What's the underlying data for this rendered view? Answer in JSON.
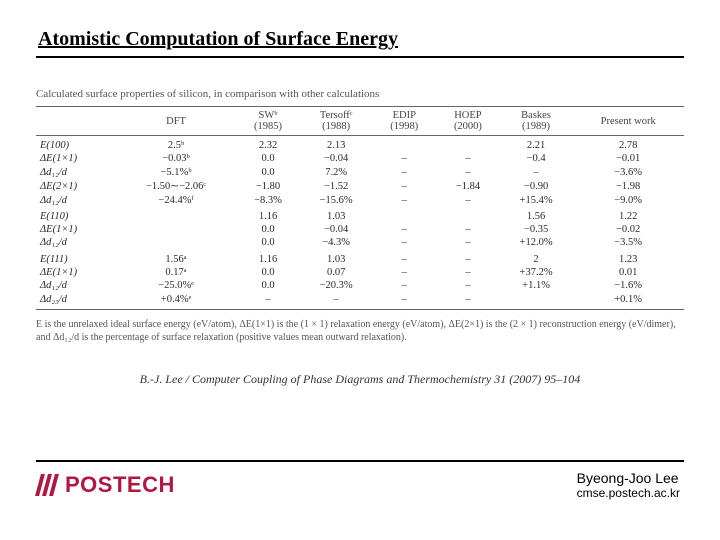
{
  "title": "Atomistic Computation of Surface Energy",
  "table": {
    "caption": "Calculated surface properties of silicon, in comparison with other calculations",
    "columns": [
      "",
      "DFT",
      "SWᵇ (1985)",
      "Tersoffᶜ (1988)",
      "EDIP (1998)",
      "HOEP (2000)",
      "Baskes (1989)",
      "Present work"
    ],
    "rows": [
      [
        "E(100)",
        "2.5ᵇ",
        "2.32",
        "2.13",
        "",
        "",
        "2.21",
        "2.78"
      ],
      [
        "ΔE(1×1)",
        "−0.03ᵇ",
        "0.0",
        "−0.04",
        "–",
        "–",
        "−0.4",
        "−0.01"
      ],
      [
        "Δd₁₂/d",
        "−5.1%ᵇ",
        "0.0",
        "7.2%",
        "–",
        "–",
        "–",
        "−3.6%"
      ],
      [
        "ΔE(2×1)",
        "−1.50∼−2.06ᶜ",
        "−1.80",
        "−1.52",
        "–",
        "−1.84",
        "−0.90",
        "−1.98"
      ],
      [
        "Δd₁₂/d",
        "−24.4%ᶠ",
        "−8.3%",
        "−15.6%",
        "–",
        "–",
        "+15.4%",
        "−9.0%"
      ],
      [
        "E(110)",
        "",
        "1.16",
        "1.03",
        "",
        "",
        "1.56",
        "1.22"
      ],
      [
        "ΔE(1×1)",
        "",
        "0.0",
        "−0.04",
        "–",
        "–",
        "−0.35",
        "−0.02"
      ],
      [
        "Δd₁₂/d",
        "",
        "0.0",
        "−4.3%",
        "–",
        "–",
        "+12.0%",
        "−3.5%"
      ],
      [
        "E(111)",
        "1.56ᵃ",
        "1.16",
        "1.03",
        "–",
        "–",
        "2",
        "1.23"
      ],
      [
        "ΔE(1×1)",
        "0.17ᵃ",
        "0.0",
        "0.07",
        "–",
        "–",
        "+37.2%",
        "0.01"
      ],
      [
        "Δd₁₂/d",
        "−25.0%ᵉ",
        "0.0",
        "−20.3%",
        "–",
        "–",
        "+1.1%",
        "−1.6%"
      ],
      [
        "Δd₂₃/d",
        "+0.4%ᵉ",
        "–",
        "–",
        "–",
        "–",
        "",
        "+0.1%"
      ]
    ],
    "group_starts": [
      0,
      5,
      8
    ],
    "note": "E is the unrelaxed ideal surface energy (eV/atom), ΔE(1×1) is the (1 × 1) relaxation energy (eV/atom), ΔE(2×1) is the (2 × 1) reconstruction energy (eV/dimer), and Δd₁₂/d is the percentage of surface relaxation (positive values mean outward relaxation)."
  },
  "citation": "B.-J. Lee / Computer Coupling of Phase Diagrams and Thermochemistry 31 (2007) 95–104",
  "logo_text": "POSTECH",
  "author": {
    "name": "Byeong-Joo Lee",
    "affil": "cmse.postech.ac.kr"
  }
}
